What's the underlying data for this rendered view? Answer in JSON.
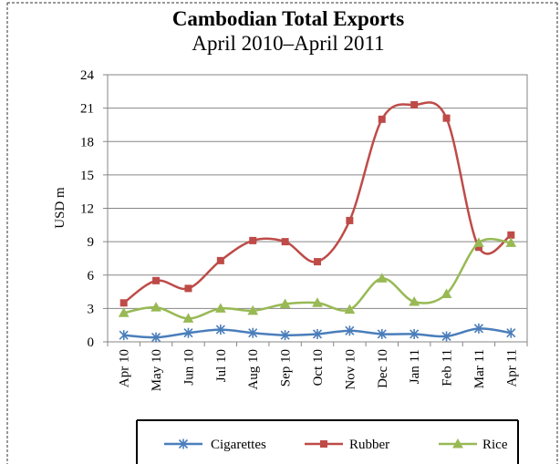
{
  "chart_data": {
    "type": "line",
    "title": "Cambodian Total Exports",
    "subtitle": "April 2010–April 2011",
    "ylabel": "USD m",
    "categories": [
      "Apr 10",
      "May 10",
      "Jun 10",
      "Jul 10",
      "Aug 10",
      "Sep 10",
      "Oct 10",
      "Nov 10",
      "Dec 10",
      "Jan 11",
      "Feb 11",
      "Mar 11",
      "Apr 11"
    ],
    "ylim": [
      0,
      24
    ],
    "yticks": [
      0,
      3,
      6,
      9,
      12,
      15,
      18,
      21,
      24
    ],
    "grid": true,
    "legend_position": "bottom",
    "smoothed": true,
    "series": [
      {
        "name": "Cigarettes",
        "color": "#4a7ebb",
        "marker": "asterisk",
        "values": [
          0.6,
          0.4,
          0.8,
          1.1,
          0.8,
          0.6,
          0.7,
          1.0,
          0.7,
          0.7,
          0.5,
          1.2,
          0.8
        ]
      },
      {
        "name": "Rubber",
        "color": "#be4b48",
        "marker": "square",
        "values": [
          3.5,
          5.5,
          4.8,
          7.3,
          9.1,
          9.0,
          7.2,
          10.9,
          20.0,
          21.3,
          20.1,
          8.5,
          9.6
        ]
      },
      {
        "name": "Rice",
        "color": "#98b954",
        "marker": "triangle",
        "values": [
          2.6,
          3.1,
          2.1,
          3.0,
          2.8,
          3.4,
          3.5,
          2.9,
          5.7,
          3.6,
          4.3,
          8.9,
          8.9
        ]
      }
    ]
  }
}
